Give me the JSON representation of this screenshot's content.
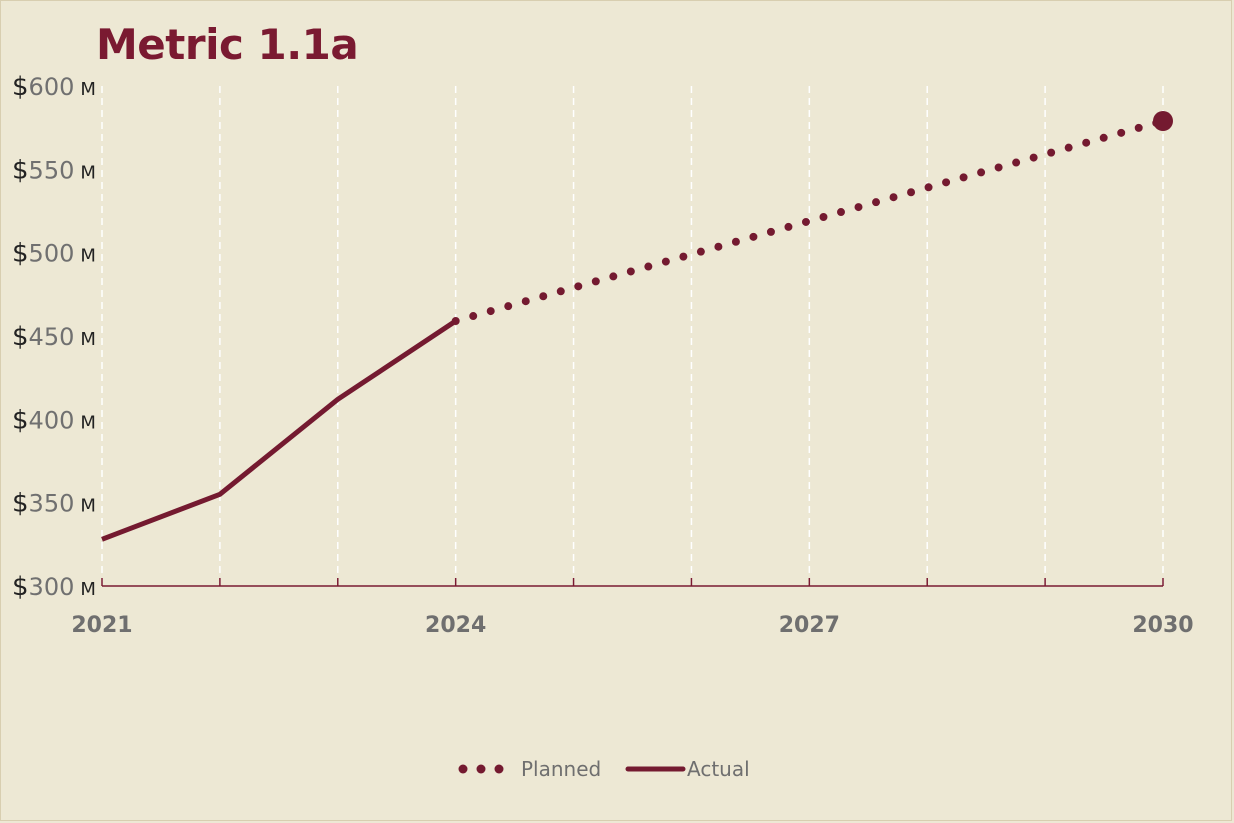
{
  "chart_data": {
    "type": "line",
    "title": "Metric 1.1a",
    "xlabel": "",
    "ylabel": "",
    "xlim": [
      2021,
      2030
    ],
    "ylim": [
      300,
      600
    ],
    "x_gridlines": [
      2021,
      2022,
      2023,
      2024,
      2025,
      2026,
      2027,
      2028,
      2029,
      2030
    ],
    "x_tick_labels": [
      {
        "value": 2021,
        "label": "2021"
      },
      {
        "value": 2024,
        "label": "2024"
      },
      {
        "value": 2027,
        "label": "2027"
      },
      {
        "value": 2030,
        "label": "2030"
      }
    ],
    "y_ticks": [
      {
        "value": 600,
        "dollar": "$",
        "number": "600",
        "unit": "M"
      },
      {
        "value": 550,
        "dollar": "$",
        "number": "550",
        "unit": "M"
      },
      {
        "value": 500,
        "dollar": "$",
        "number": "500",
        "unit": "M"
      },
      {
        "value": 450,
        "dollar": "$",
        "number": "450",
        "unit": "M"
      },
      {
        "value": 400,
        "dollar": "$",
        "number": "400",
        "unit": "M"
      },
      {
        "value": 350,
        "dollar": "$",
        "number": "350",
        "unit": "M"
      },
      {
        "value": 300,
        "dollar": "$",
        "number": "300",
        "unit": "M"
      }
    ],
    "grid": {
      "vertical": true,
      "horizontal": false,
      "style": "dashed"
    },
    "legend_position": "bottom-center",
    "series": [
      {
        "name": "Planned",
        "style": "dotted",
        "x": [
          2024,
          2030
        ],
        "y": [
          459,
          579
        ],
        "end_marker": true
      },
      {
        "name": "Actual",
        "style": "solid",
        "x": [
          2021,
          2022,
          2023,
          2024
        ],
        "y": [
          328,
          355,
          412,
          459
        ]
      }
    ],
    "colors": {
      "series": "#741a30",
      "axis": "#7a1a31",
      "grid": "#ffffff",
      "background": "#ede8d4"
    }
  }
}
